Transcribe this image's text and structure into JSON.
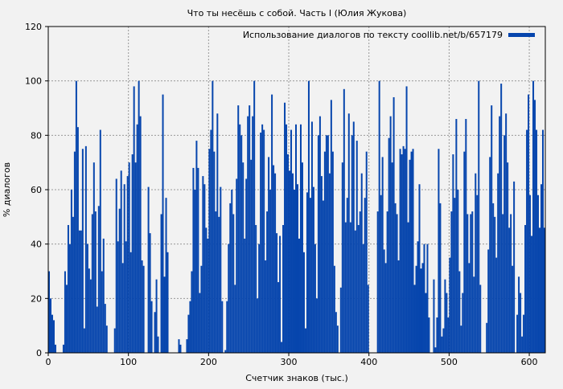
{
  "chart_data": {
    "type": "bar",
    "title": "Что ты несёшь с собой. Часть I (Юлия Жукова)",
    "xlabel": "Счетчик знаков (тыс.)",
    "ylabel": "% диалогов",
    "xlim": [
      0,
      620
    ],
    "ylim": [
      0,
      120
    ],
    "x_ticks": [
      "0",
      "100",
      "200",
      "300",
      "400",
      "500",
      "600"
    ],
    "y_ticks": [
      "0",
      "20",
      "40",
      "60",
      "80",
      "100",
      "120"
    ],
    "grid": true,
    "legend_position": "top-right",
    "x_start": 0,
    "x_step": 2,
    "series": [
      {
        "name": "Использование диалогов по тексту coollib.net/b/657179",
        "color": "#0645ad",
        "values": [
          30,
          20,
          14,
          12,
          3,
          0,
          0,
          0,
          0,
          3,
          30,
          25,
          47,
          40,
          60,
          50,
          74,
          100,
          83,
          45,
          45,
          75,
          9,
          76,
          40,
          31,
          27,
          51,
          70,
          52,
          17,
          54,
          82,
          30,
          42,
          18,
          10,
          0,
          0,
          0,
          0,
          9,
          64,
          41,
          53,
          67,
          33,
          62,
          41,
          65,
          70,
          37,
          73,
          98,
          70,
          84,
          100,
          87,
          34,
          32,
          0,
          0,
          61,
          44,
          19,
          0,
          15,
          27,
          6,
          0,
          51,
          95,
          28,
          57,
          37,
          0,
          0,
          0,
          0,
          0,
          0,
          5,
          3,
          0,
          0,
          0,
          5,
          14,
          19,
          30,
          68,
          60,
          78,
          68,
          22,
          32,
          65,
          62,
          46,
          42,
          75,
          82,
          100,
          74,
          52,
          88,
          50,
          61,
          19,
          0,
          1,
          19,
          40,
          55,
          60,
          51,
          25,
          64,
          91,
          84,
          80,
          70,
          42,
          64,
          87,
          91,
          71,
          87,
          100,
          47,
          20,
          40,
          81,
          84,
          82,
          34,
          52,
          72,
          60,
          95,
          69,
          66,
          44,
          26,
          43,
          4,
          47,
          92,
          84,
          73,
          67,
          82,
          66,
          60,
          84,
          62,
          42,
          84,
          70,
          37,
          9,
          59,
          100,
          57,
          85,
          61,
          40,
          20,
          80,
          87,
          65,
          56,
          74,
          80,
          80,
          66,
          93,
          74,
          32,
          15,
          10,
          0,
          24,
          70,
          97,
          48,
          57,
          88,
          48,
          80,
          85,
          45,
          78,
          47,
          52,
          66,
          40,
          57,
          74,
          25,
          0,
          0,
          0,
          0,
          0,
          52,
          100,
          58,
          72,
          38,
          33,
          52,
          79,
          87,
          70,
          94,
          55,
          51,
          34,
          75,
          73,
          76,
          75,
          98,
          48,
          71,
          74,
          75,
          25,
          32,
          41,
          62,
          31,
          33,
          40,
          22,
          40,
          13,
          0,
          0,
          27,
          2,
          13,
          75,
          55,
          6,
          9,
          27,
          22,
          13,
          35,
          52,
          73,
          57,
          86,
          60,
          30,
          10,
          22,
          74,
          86,
          51,
          33,
          51,
          52,
          28,
          66,
          58,
          100,
          25,
          0,
          0,
          0,
          11,
          38,
          72,
          91,
          55,
          50,
          35,
          66,
          87,
          99,
          51,
          80,
          88,
          70,
          46,
          51,
          32,
          63,
          0,
          14,
          28,
          22,
          6,
          14,
          47,
          82,
          95,
          58,
          43,
          100,
          93,
          82,
          58,
          46,
          62,
          82,
          46
        ]
      }
    ]
  }
}
